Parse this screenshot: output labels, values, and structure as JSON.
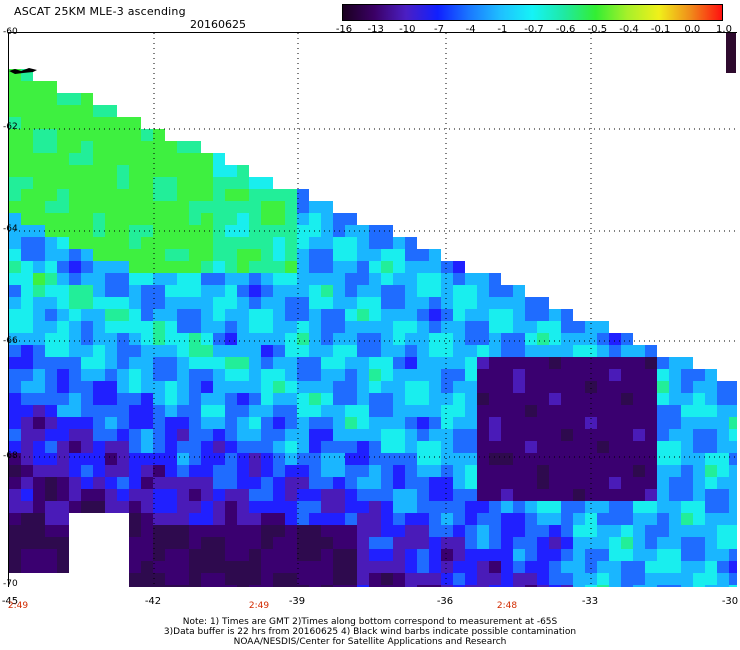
{
  "header": {
    "title": "ASCAT 25KM MLE-3 ascending",
    "date": "20160625"
  },
  "colorbar": {
    "tick_labels": [
      "-16",
      "-13",
      "-10",
      "-7",
      "-4",
      "-1",
      "-0.7",
      "-0.6",
      "-0.5",
      "-0.4",
      "-0.1",
      "0.0",
      "1.0"
    ],
    "colors": [
      "#1a001f",
      "#3b0066",
      "#4b1fc4",
      "#1020ff",
      "#1a78ff",
      "#1fc0ff",
      "#15f3f6",
      "#1fe9a3",
      "#33ee33",
      "#a6f02a",
      "#f0f01a",
      "#f08c1a",
      "#ff1010"
    ]
  },
  "map": {
    "latitude_labels": [
      "-60",
      "-62",
      "-64",
      "-66",
      "-68",
      "-70"
    ],
    "longitude_labels": [
      "-45",
      "-42",
      "-39",
      "-36",
      "-33",
      "-30"
    ],
    "time_labels": [
      "2:49",
      "2:49",
      "2:48"
    ],
    "gridlines": true,
    "legend_placement": "top"
  },
  "notes": [
    "Note: 1) Times are GMT 2)Times along bottom correspond to measurement at -65S",
    "3)Data buffer is 22 hrs from 20160625 4) Black wind barbs indicate possible contamination",
    "NOAA/NESDIS/Center for Satellite Applications and Research"
  ]
}
